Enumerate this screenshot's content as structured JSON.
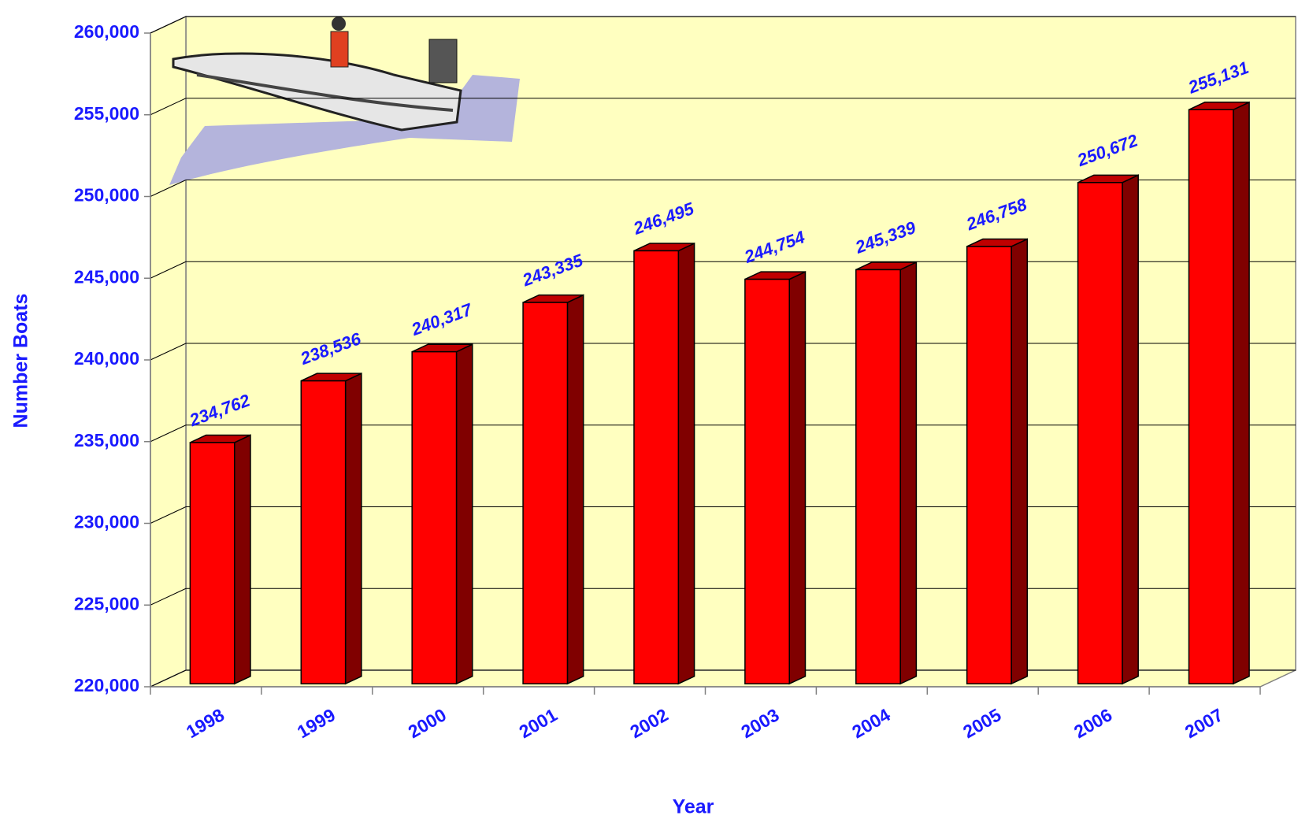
{
  "chart_data": {
    "type": "bar3d",
    "x_label": "Year",
    "y_label": "Number Boats",
    "categories": [
      "1998",
      "1999",
      "2000",
      "2001",
      "2002",
      "2003",
      "2004",
      "2005",
      "2006",
      "2007"
    ],
    "values": [
      234762,
      238536,
      240317,
      243335,
      246495,
      244754,
      245339,
      246758,
      250672,
      255131
    ],
    "value_labels": [
      "234,762",
      "238,536",
      "240,317",
      "243,335",
      "246,495",
      "244,754",
      "245,339",
      "246,758",
      "250,672",
      "255,131"
    ],
    "color": "#ff0000",
    "ylim": [
      220000,
      260000
    ],
    "yticks": [
      {
        "value": 220000,
        "label": "220,000"
      },
      {
        "value": 225000,
        "label": "225,000"
      },
      {
        "value": 230000,
        "label": "230,000"
      },
      {
        "value": 235000,
        "label": "235,000"
      },
      {
        "value": 240000,
        "label": "240,000"
      },
      {
        "value": 245000,
        "label": "245,000"
      },
      {
        "value": 250000,
        "label": "250,000"
      },
      {
        "value": 255000,
        "label": "255,000"
      },
      {
        "value": 260000,
        "label": "260,000"
      }
    ],
    "grid": true
  }
}
